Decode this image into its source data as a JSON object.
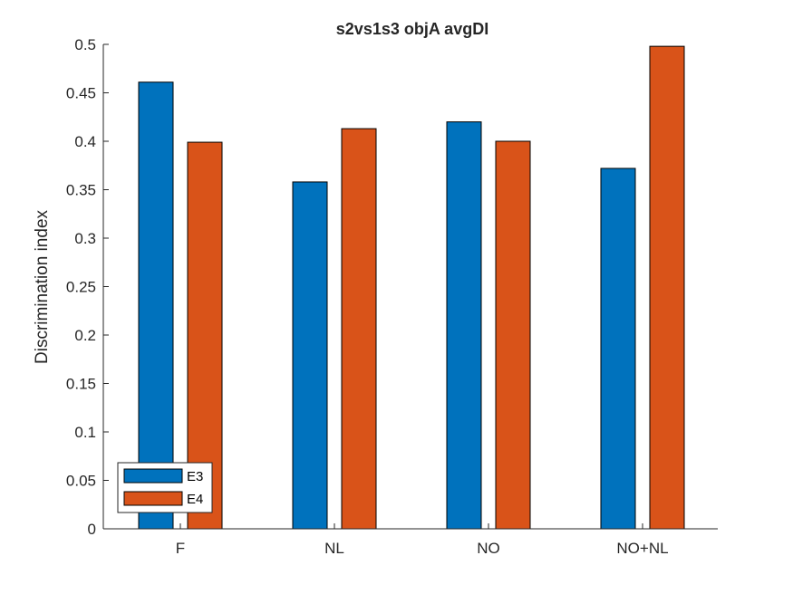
{
  "chart_data": {
    "type": "bar",
    "title": "s2vs1s3 objA avgDI",
    "xlabel": "",
    "ylabel": "Discrimination index",
    "categories": [
      "F",
      "NL",
      "NO",
      "NO+NL"
    ],
    "series": [
      {
        "name": "E3",
        "color": "#0072BD",
        "values": [
          0.461,
          0.358,
          0.42,
          0.372
        ]
      },
      {
        "name": "E4",
        "color": "#D95319",
        "values": [
          0.399,
          0.413,
          0.4,
          0.498
        ]
      }
    ],
    "ylim": [
      0,
      0.5
    ],
    "yticks": [
      0,
      0.05,
      0.1,
      0.15,
      0.2,
      0.25,
      0.3,
      0.35,
      0.4,
      0.45,
      0.5
    ],
    "ytick_labels": [
      "0",
      "0.05",
      "0.1",
      "0.15",
      "0.2",
      "0.25",
      "0.3",
      "0.35",
      "0.4",
      "0.45",
      "0.5"
    ],
    "grid": false,
    "legend_position": "bottom-left"
  }
}
